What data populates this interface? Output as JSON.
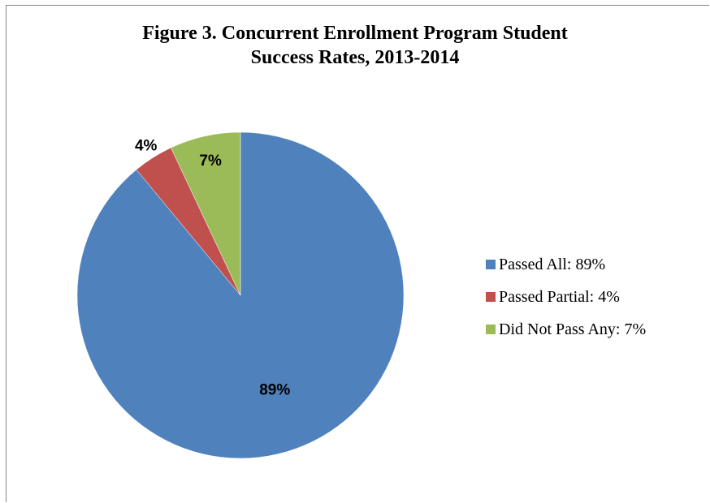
{
  "chart_data": {
    "type": "pie",
    "title_lines": [
      "Figure 3. Concurrent Enrollment Program Student",
      "Success Rates, 2013-2014"
    ],
    "legend_position": "right",
    "slices": [
      {
        "label": "Passed All: 89%",
        "value": 89,
        "data_label": "89%",
        "color": "#4F81BD"
      },
      {
        "label": "Passed Partial: 4%",
        "value": 4,
        "data_label": "4%",
        "color": "#C0504D"
      },
      {
        "label": "Did Not Pass Any: 7%",
        "value": 7,
        "data_label": "7%",
        "color": "#9BBB59"
      }
    ]
  }
}
